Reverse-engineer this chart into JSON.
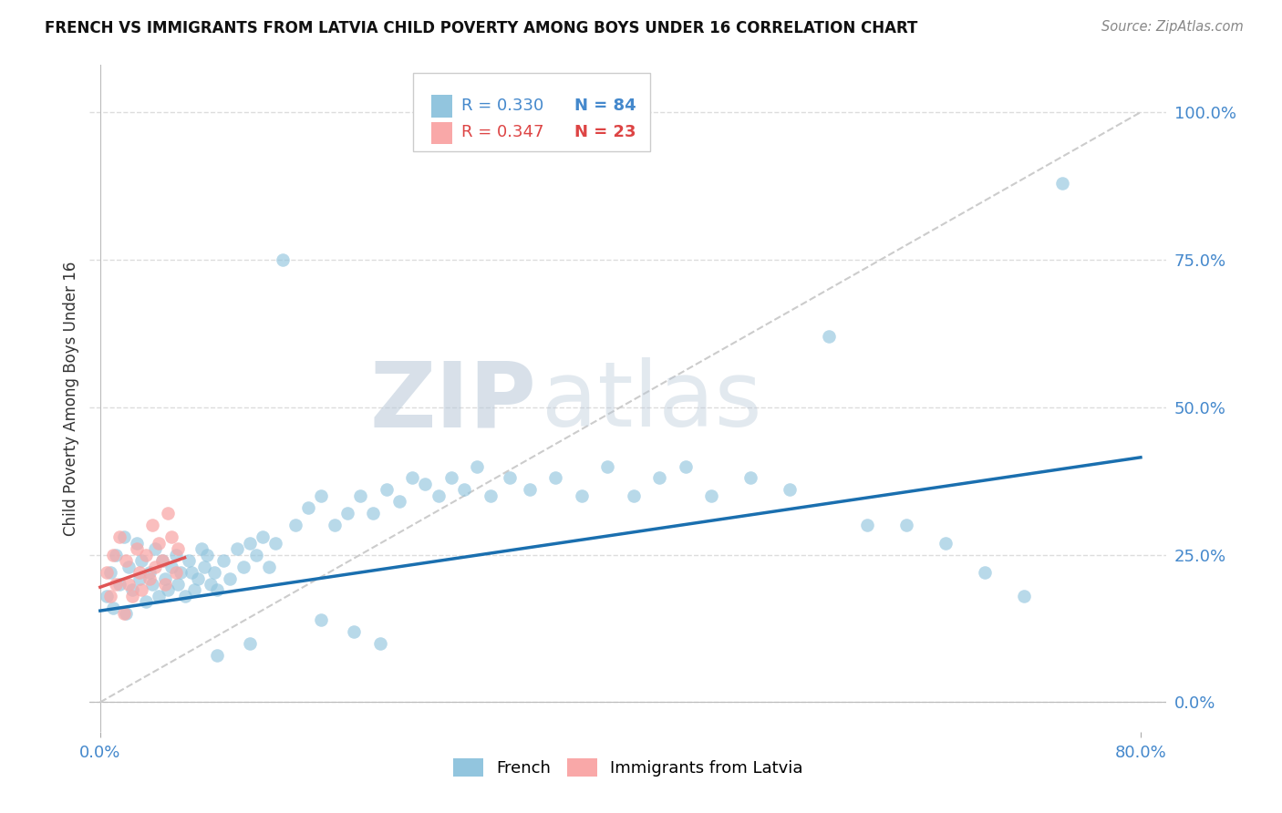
{
  "title": "FRENCH VS IMMIGRANTS FROM LATVIA CHILD POVERTY AMONG BOYS UNDER 16 CORRELATION CHART",
  "source": "Source: ZipAtlas.com",
  "ylabel": "Child Poverty Among Boys Under 16",
  "xlim": [
    -0.008,
    0.82
  ],
  "ylim": [
    -0.05,
    1.08
  ],
  "yticks": [
    0.0,
    0.25,
    0.5,
    0.75,
    1.0
  ],
  "ytick_labels": [
    "0.0%",
    "25.0%",
    "50.0%",
    "75.0%",
    "100.0%"
  ],
  "xtick_left": "0.0%",
  "xtick_right": "80.0%",
  "legend_french_r": "R = 0.330",
  "legend_french_n": "N = 84",
  "legend_latvia_r": "R = 0.347",
  "legend_latvia_n": "N = 23",
  "french_color": "#92c5de",
  "latvia_color": "#f9a8a8",
  "french_line_color": "#1a6faf",
  "latvia_line_color": "#e05555",
  "ref_line_color": "#cccccc",
  "text_blue": "#4488cc",
  "text_pink": "#dd4444",
  "grid_color": "#dddddd",
  "watermark_color": "#d0dce8",
  "title_color": "#111111",
  "source_color": "#888888",
  "ylabel_color": "#333333",
  "french_x": [
    0.005,
    0.008,
    0.01,
    0.012,
    0.015,
    0.018,
    0.02,
    0.022,
    0.025,
    0.028,
    0.03,
    0.032,
    0.035,
    0.038,
    0.04,
    0.042,
    0.045,
    0.048,
    0.05,
    0.052,
    0.055,
    0.058,
    0.06,
    0.062,
    0.065,
    0.068,
    0.07,
    0.072,
    0.075,
    0.078,
    0.08,
    0.082,
    0.085,
    0.088,
    0.09,
    0.095,
    0.1,
    0.105,
    0.11,
    0.115,
    0.12,
    0.125,
    0.13,
    0.135,
    0.14,
    0.15,
    0.16,
    0.17,
    0.18,
    0.19,
    0.2,
    0.21,
    0.22,
    0.23,
    0.24,
    0.25,
    0.26,
    0.27,
    0.28,
    0.29,
    0.3,
    0.315,
    0.33,
    0.35,
    0.37,
    0.39,
    0.41,
    0.43,
    0.45,
    0.47,
    0.5,
    0.53,
    0.56,
    0.59,
    0.62,
    0.65,
    0.68,
    0.71,
    0.74,
    0.17,
    0.195,
    0.215,
    0.115,
    0.09
  ],
  "french_y": [
    0.18,
    0.22,
    0.16,
    0.25,
    0.2,
    0.28,
    0.15,
    0.23,
    0.19,
    0.27,
    0.21,
    0.24,
    0.17,
    0.22,
    0.2,
    0.26,
    0.18,
    0.24,
    0.21,
    0.19,
    0.23,
    0.25,
    0.2,
    0.22,
    0.18,
    0.24,
    0.22,
    0.19,
    0.21,
    0.26,
    0.23,
    0.25,
    0.2,
    0.22,
    0.19,
    0.24,
    0.21,
    0.26,
    0.23,
    0.27,
    0.25,
    0.28,
    0.23,
    0.27,
    0.75,
    0.3,
    0.33,
    0.35,
    0.3,
    0.32,
    0.35,
    0.32,
    0.36,
    0.34,
    0.38,
    0.37,
    0.35,
    0.38,
    0.36,
    0.4,
    0.35,
    0.38,
    0.36,
    0.38,
    0.35,
    0.4,
    0.35,
    0.38,
    0.4,
    0.35,
    0.38,
    0.36,
    0.62,
    0.3,
    0.3,
    0.27,
    0.22,
    0.18,
    0.88,
    0.14,
    0.12,
    0.1,
    0.1,
    0.08
  ],
  "latvia_x": [
    0.005,
    0.008,
    0.01,
    0.012,
    0.015,
    0.018,
    0.02,
    0.022,
    0.025,
    0.028,
    0.03,
    0.032,
    0.035,
    0.038,
    0.04,
    0.042,
    0.045,
    0.048,
    0.05,
    0.052,
    0.055,
    0.058,
    0.06
  ],
  "latvia_y": [
    0.22,
    0.18,
    0.25,
    0.2,
    0.28,
    0.15,
    0.24,
    0.2,
    0.18,
    0.26,
    0.22,
    0.19,
    0.25,
    0.21,
    0.3,
    0.23,
    0.27,
    0.24,
    0.2,
    0.32,
    0.28,
    0.22,
    0.26
  ]
}
